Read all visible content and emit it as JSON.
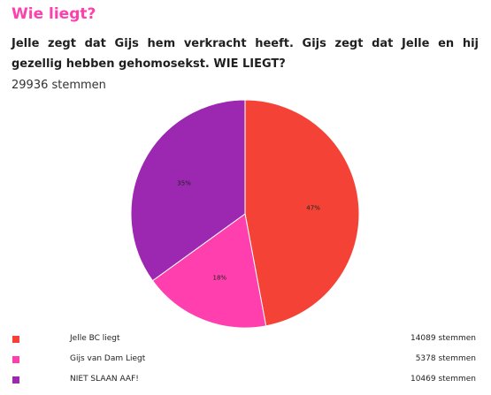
{
  "page": {
    "title": "Wie liegt?",
    "question": "Jelle zegt dat Gijs hem verkracht heeft. Gijs zegt dat Jelle en hij gezellig hebben gehomosekst. WIE LIEGT?",
    "total_votes_text": "29936 stemmen"
  },
  "chart_data": {
    "type": "pie",
    "title": "",
    "labels": [
      "Jelle BC liegt",
      "Gijs van Dam Liegt",
      "NIET SLAAN AAF!"
    ],
    "values": [
      14089,
      5378,
      10469
    ],
    "percent_labels": [
      "47%",
      "18%",
      "35%"
    ],
    "count_labels": [
      "14089 stemmen",
      "5378 stemmen",
      "10469 stemmen"
    ],
    "colors": [
      "#f44336",
      "#ff3fae",
      "#9c27b0"
    ],
    "start_angle": "12 o'clock, clockwise",
    "legend_position": "bottom"
  },
  "colors": {
    "accent": "#ff3fae"
  }
}
